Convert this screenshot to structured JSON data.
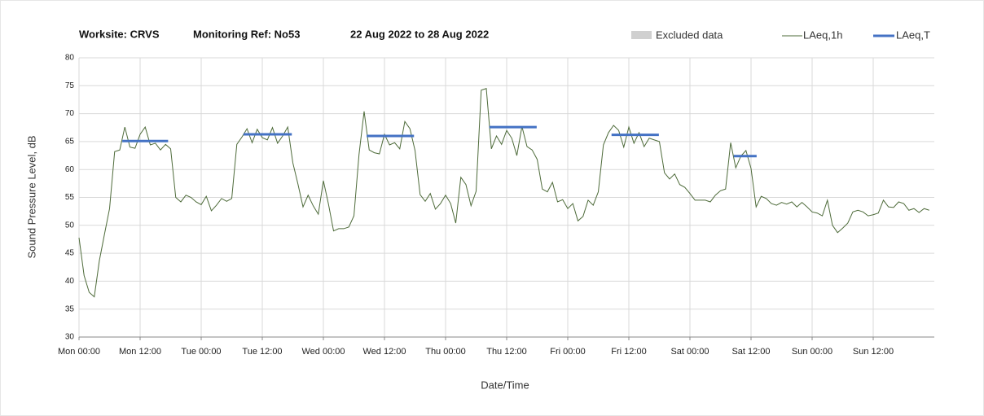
{
  "chart_data": {
    "type": "line",
    "title": [
      "Worksite: CRVS",
      "Monitoring Ref: No53",
      "22 Aug 2022 to 28 Aug 2022"
    ],
    "y_label": "Sound Pressure Level, dB",
    "x_label": "Date/Time",
    "legend": [
      {
        "name": "Excluded data",
        "color": "#d0d0d0"
      }
    ],
    "xlim": [
      0,
      168
    ],
    "ylim": [
      30,
      80
    ],
    "yticks": [
      30,
      35,
      40,
      45,
      50,
      55,
      60,
      65,
      70,
      75,
      80
    ],
    "xticks": [
      {
        "value": 0,
        "label": "Mon 00:00"
      },
      {
        "value": 12,
        "label": "Mon 12:00"
      },
      {
        "value": 24,
        "label": "Tue 00:00"
      },
      {
        "value": 36,
        "label": "Tue 12:00"
      },
      {
        "value": 48,
        "label": "Wed 00:00"
      },
      {
        "value": 60,
        "label": "Wed 12:00"
      },
      {
        "value": 72,
        "label": "Thu 00:00"
      },
      {
        "value": 84,
        "label": "Thu 12:00"
      },
      {
        "value": 96,
        "label": "Fri 00:00"
      },
      {
        "value": 108,
        "label": "Fri 12:00"
      },
      {
        "value": 120,
        "label": "Sat 00:00"
      },
      {
        "value": 132,
        "label": "Sat 12:00"
      },
      {
        "value": 144,
        "label": "Sun 00:00"
      },
      {
        "value": 156,
        "label": "Sun 12:00"
      }
    ],
    "grid": true,
    "x": [
      0,
      1,
      2,
      3,
      4,
      5,
      6,
      7,
      8,
      9,
      10,
      11,
      12,
      13,
      14,
      15,
      16,
      17,
      18,
      19,
      20,
      21,
      22,
      23,
      24,
      25,
      26,
      27,
      28,
      29,
      30,
      31,
      32,
      33,
      34,
      35,
      36,
      37,
      38,
      39,
      40,
      41,
      42,
      43,
      44,
      45,
      46,
      47,
      48,
      49,
      50,
      51,
      52,
      53,
      54,
      55,
      56,
      57,
      58,
      59,
      60,
      61,
      62,
      63,
      64,
      65,
      66,
      67,
      68,
      69,
      70,
      71,
      72,
      73,
      74,
      75,
      76,
      77,
      78,
      79,
      80,
      81,
      82,
      83,
      84,
      85,
      86,
      87,
      88,
      89,
      90,
      91,
      92,
      93,
      94,
      95,
      96,
      97,
      98,
      99,
      100,
      101,
      102,
      103,
      104,
      105,
      106,
      107,
      108,
      109,
      110,
      111,
      112,
      113,
      114,
      115,
      116,
      117,
      118,
      119,
      120,
      121,
      122,
      123,
      124,
      125,
      126,
      127,
      128,
      129,
      130,
      131,
      132,
      133,
      134,
      135,
      136,
      137,
      138,
      139,
      140,
      141,
      142,
      143,
      144,
      145,
      146,
      147,
      148,
      149,
      150,
      151,
      152,
      153,
      154,
      155,
      156,
      157,
      158,
      159,
      160,
      161,
      162,
      163,
      164,
      165,
      166,
      167
    ],
    "series": [
      {
        "name": "LAeq,1h",
        "color": "#4e6b3a",
        "values": [
          47.8,
          41,
          38,
          37.2,
          43.7,
          48.4,
          53,
          63.2,
          63.5,
          67.6,
          64,
          63.8,
          66.3,
          67.6,
          64.4,
          64.7,
          63.5,
          64.5,
          63.7,
          55,
          54.2,
          55.4,
          55,
          54.2,
          53.7,
          55.2,
          52.6,
          53.6,
          54.8,
          54.3,
          54.8,
          64.5,
          65.8,
          67.3,
          64.8,
          67.2,
          65.7,
          65.3,
          67.5,
          64.7,
          66,
          67.6,
          61.2,
          57.4,
          53.3,
          55.4,
          53.5,
          52,
          58,
          53.8,
          49,
          49.4,
          49.4,
          49.7,
          51.7,
          62.7,
          70.4,
          63.5,
          63,
          62.8,
          66.3,
          64.4,
          64.8,
          63.7,
          68.6,
          67.3,
          63.4,
          55.5,
          54.3,
          55.7,
          52.9,
          53.9,
          55.4,
          53.9,
          50.4,
          58.6,
          57.3,
          53.5,
          56.1,
          74.2,
          74.5,
          63.7,
          66,
          64.5,
          67,
          65.6,
          62.5,
          67.7,
          64.1,
          63.5,
          61.8,
          56.5,
          56,
          57.7,
          54.2,
          54.6,
          53,
          53.9,
          50.8,
          51.6,
          54.5,
          53.6,
          56,
          64.4,
          66.6,
          67.9,
          67,
          64,
          67.6,
          64.7,
          66.6,
          64.1,
          65.6,
          65.3,
          65,
          59.4,
          58.3,
          59.2,
          57.3,
          56.8,
          55.7,
          54.5,
          54.5,
          54.5,
          54.2,
          55.4,
          56.2,
          56.5,
          64.8,
          60.3,
          62.4,
          63.4,
          60.2,
          53.3,
          55.2,
          54.8,
          53.9,
          53.6,
          54.1,
          53.8,
          54.2,
          53.3,
          54.1,
          53.3,
          52.4,
          52.2,
          51.7,
          54.5,
          50,
          48.7,
          49.5,
          50.4,
          52.4,
          52.7,
          52.4,
          51.7,
          51.9,
          52.2,
          54.5,
          53.3,
          53.2,
          54.2,
          53.9,
          52.7,
          53,
          52.3,
          53,
          52.7
        ]
      },
      {
        "name": "LAeq,T",
        "color": "#4472c4",
        "segments": [
          {
            "x": [
              8.5,
              17.5
            ],
            "value": 65.1
          },
          {
            "x": [
              32.3,
              41.8
            ],
            "value": 66.3
          },
          {
            "x": [
              56.5,
              65.8
            ],
            "value": 66.0
          },
          {
            "x": [
              80.6,
              89.9
            ],
            "value": 67.6
          },
          {
            "x": [
              104.6,
              113.9
            ],
            "value": 66.2
          },
          {
            "x": [
              128.6,
              133.1
            ],
            "value": 62.4
          }
        ]
      }
    ]
  }
}
